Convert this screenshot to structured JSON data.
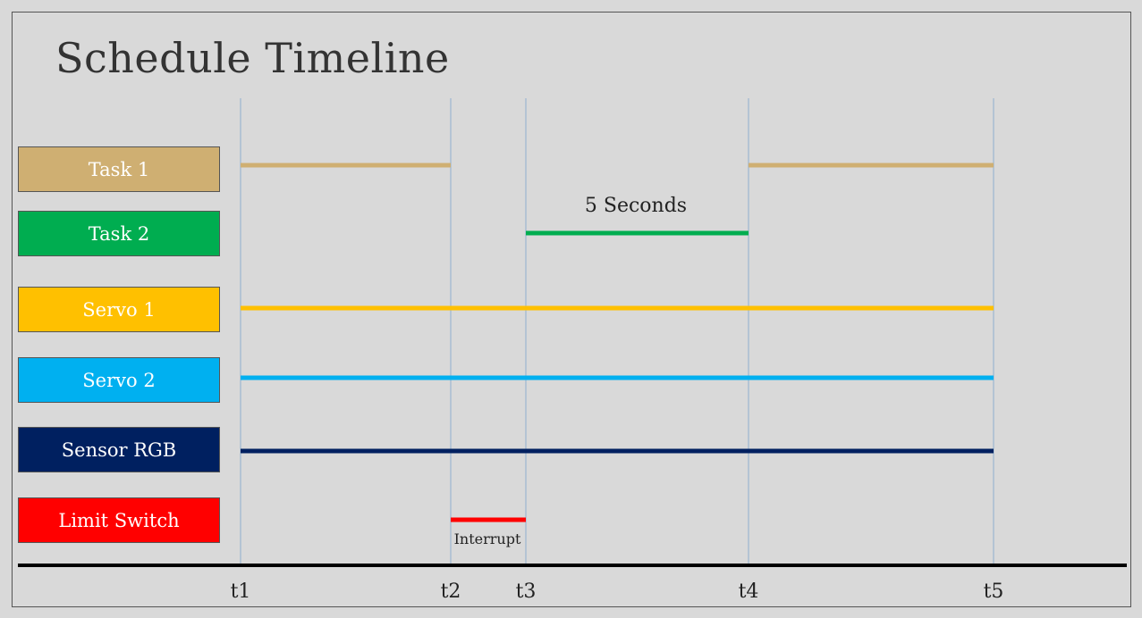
{
  "title": "Schedule Timeline",
  "rows": [
    {
      "label": "Task 1",
      "color": "#cfaf72"
    },
    {
      "label": "Task 2",
      "color": "#00ad50"
    },
    {
      "label": "Servo 1",
      "color": "#ffc000"
    },
    {
      "label": "Servo 2",
      "color": "#00b0f0"
    },
    {
      "label": "Sensor RGB",
      "color": "#002060"
    },
    {
      "label": "Limit Switch",
      "color": "#ff0000"
    }
  ],
  "time_marks": [
    "t1",
    "t2",
    "t3",
    "t4",
    "t5"
  ],
  "segments": [
    {
      "row": 0,
      "from": "t1",
      "to": "t2"
    },
    {
      "row": 0,
      "from": "t4",
      "to": "t5"
    },
    {
      "row": 1,
      "from": "t3",
      "to": "t4"
    },
    {
      "row": 2,
      "from": "t1",
      "to": "t5"
    },
    {
      "row": 3,
      "from": "t1",
      "to": "t5"
    },
    {
      "row": 4,
      "from": "t1",
      "to": "t5"
    },
    {
      "row": 5,
      "from": "t2",
      "to": "t3"
    }
  ],
  "annotations": {
    "duration_label": "5 Seconds",
    "interrupt_label": "Interrupt"
  },
  "colors": {
    "gridline": "#8fb0d0",
    "axis": "#000000",
    "background": "#d9d9d9"
  }
}
